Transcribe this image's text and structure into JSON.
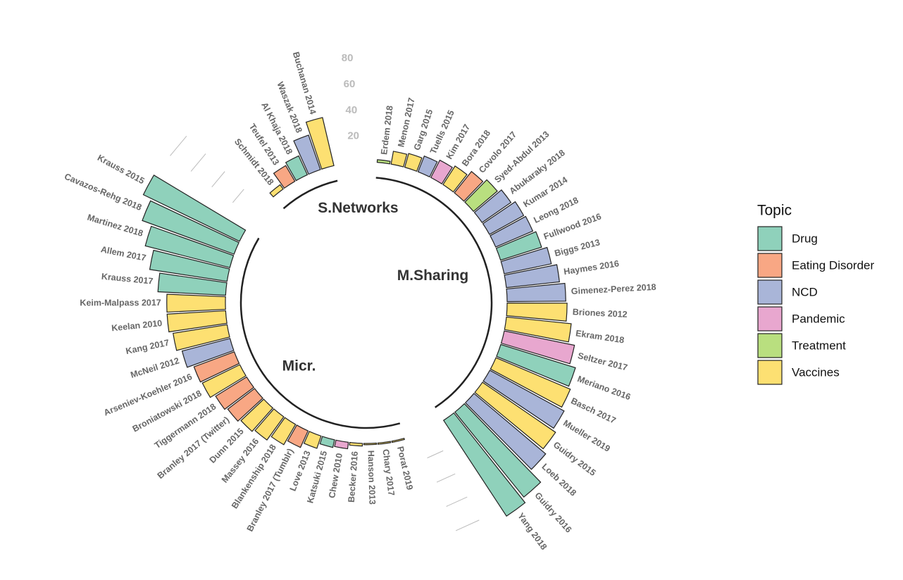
{
  "chart_data": {
    "type": "circular-bar",
    "ylim": [
      0,
      100
    ],
    "yticks": [
      20,
      40,
      60,
      80
    ],
    "legend": "right",
    "legend_title": "Topic",
    "topics": [
      {
        "name": "Drug",
        "color": "#8fd1bb"
      },
      {
        "name": "Eating Disorder",
        "color": "#f8a784"
      },
      {
        "name": "NCD",
        "color": "#a9b5d8"
      },
      {
        "name": "Pandemic",
        "color": "#e8a7cf"
      },
      {
        "name": "Treatment",
        "color": "#b9df7f"
      },
      {
        "name": "Vaccines",
        "color": "#fde072"
      }
    ],
    "groups": [
      {
        "name": "M.Sharing",
        "categories": [
          "Erdem 2018",
          "Menon 2017",
          "Garg 2015",
          "Tuells 2015",
          "Kim 2017",
          "Bora 2018",
          "Covolo 2017",
          "Syed-Abdul 2013",
          "Abukaraky 2018",
          "Kumar 2014",
          "Leong 2018",
          "Fullwood 2016",
          "Biggs 2013",
          "Haymes 2016",
          "Gimenez-Perez 2018",
          "Briones 2012",
          "Ekram 2018",
          "Seltzer 2017",
          "Meriano 2016",
          "Basch 2017",
          "Mueller 2019",
          "Guidry 2015",
          "Loeb 2018",
          "Guidry 2016",
          "Yang 2018"
        ],
        "values": [
          2,
          10,
          11,
          13,
          15,
          17,
          21,
          24,
          27,
          30,
          31,
          33,
          37,
          41,
          45,
          46,
          50,
          55,
          60,
          62,
          65,
          68,
          72,
          84,
          88
        ],
        "topics": [
          "Treatment",
          "Vaccines",
          "Vaccines",
          "NCD",
          "Pandemic",
          "Vaccines",
          "Eating Disorder",
          "Treatment",
          "NCD",
          "NCD",
          "NCD",
          "Drug",
          "NCD",
          "NCD",
          "NCD",
          "Vaccines",
          "Vaccines",
          "Pandemic",
          "Drug",
          "Vaccines",
          "NCD",
          "Vaccines",
          "NCD",
          "Drug",
          "Drug"
        ]
      },
      {
        "name": "Micr.",
        "categories": [
          "Porat 2019",
          "Chary 2017",
          "Hanson 2013",
          "Becker 2016",
          "Chew 2010",
          "Katsuki 2015",
          "Love 2013",
          "Branley 2017 (Tumblr)",
          "Blankenship 2018",
          "Massey 2016",
          "Dunn 2015",
          "Branley 2017 (Twitter)",
          "Tiggermann 2018",
          "Broniatowski 2018",
          "Arseniev-Koehler 2016",
          "McNeil 2012",
          "Kang 2017",
          "Keelan 2010",
          "Keim-Malpass 2017",
          "Krauss 2017",
          "Allem 2017",
          "Martinez 2018",
          "Cavazos-Rehg 2018",
          "Krauss 2015"
        ],
        "values": [
          1,
          1,
          1,
          2,
          5,
          6,
          10,
          14,
          18,
          22,
          24,
          26,
          28,
          32,
          33,
          38,
          42,
          45,
          45,
          52,
          60,
          67,
          75,
          82
        ],
        "topics": [
          "Vaccines",
          "Vaccines",
          "Vaccines",
          "Vaccines",
          "Pandemic",
          "Drug",
          "Vaccines",
          "Eating Disorder",
          "Vaccines",
          "Vaccines",
          "Vaccines",
          "Eating Disorder",
          "Eating Disorder",
          "Vaccines",
          "Eating Disorder",
          "NCD",
          "Vaccines",
          "Vaccines",
          "Vaccines",
          "Drug",
          "Drug",
          "Drug",
          "Drug",
          "Drug"
        ]
      },
      {
        "name": "S.Networks",
        "categories": [
          "Schmidt 2018",
          "Teufel 2013",
          "Al Khaja 2018",
          "Waszak 2018",
          "Buchanan 2014"
        ],
        "values": [
          4,
          14,
          16,
          28,
          38
        ],
        "topics": [
          "Vaccines",
          "Eating Disorder",
          "Drug",
          "NCD",
          "Vaccines"
        ]
      }
    ]
  }
}
